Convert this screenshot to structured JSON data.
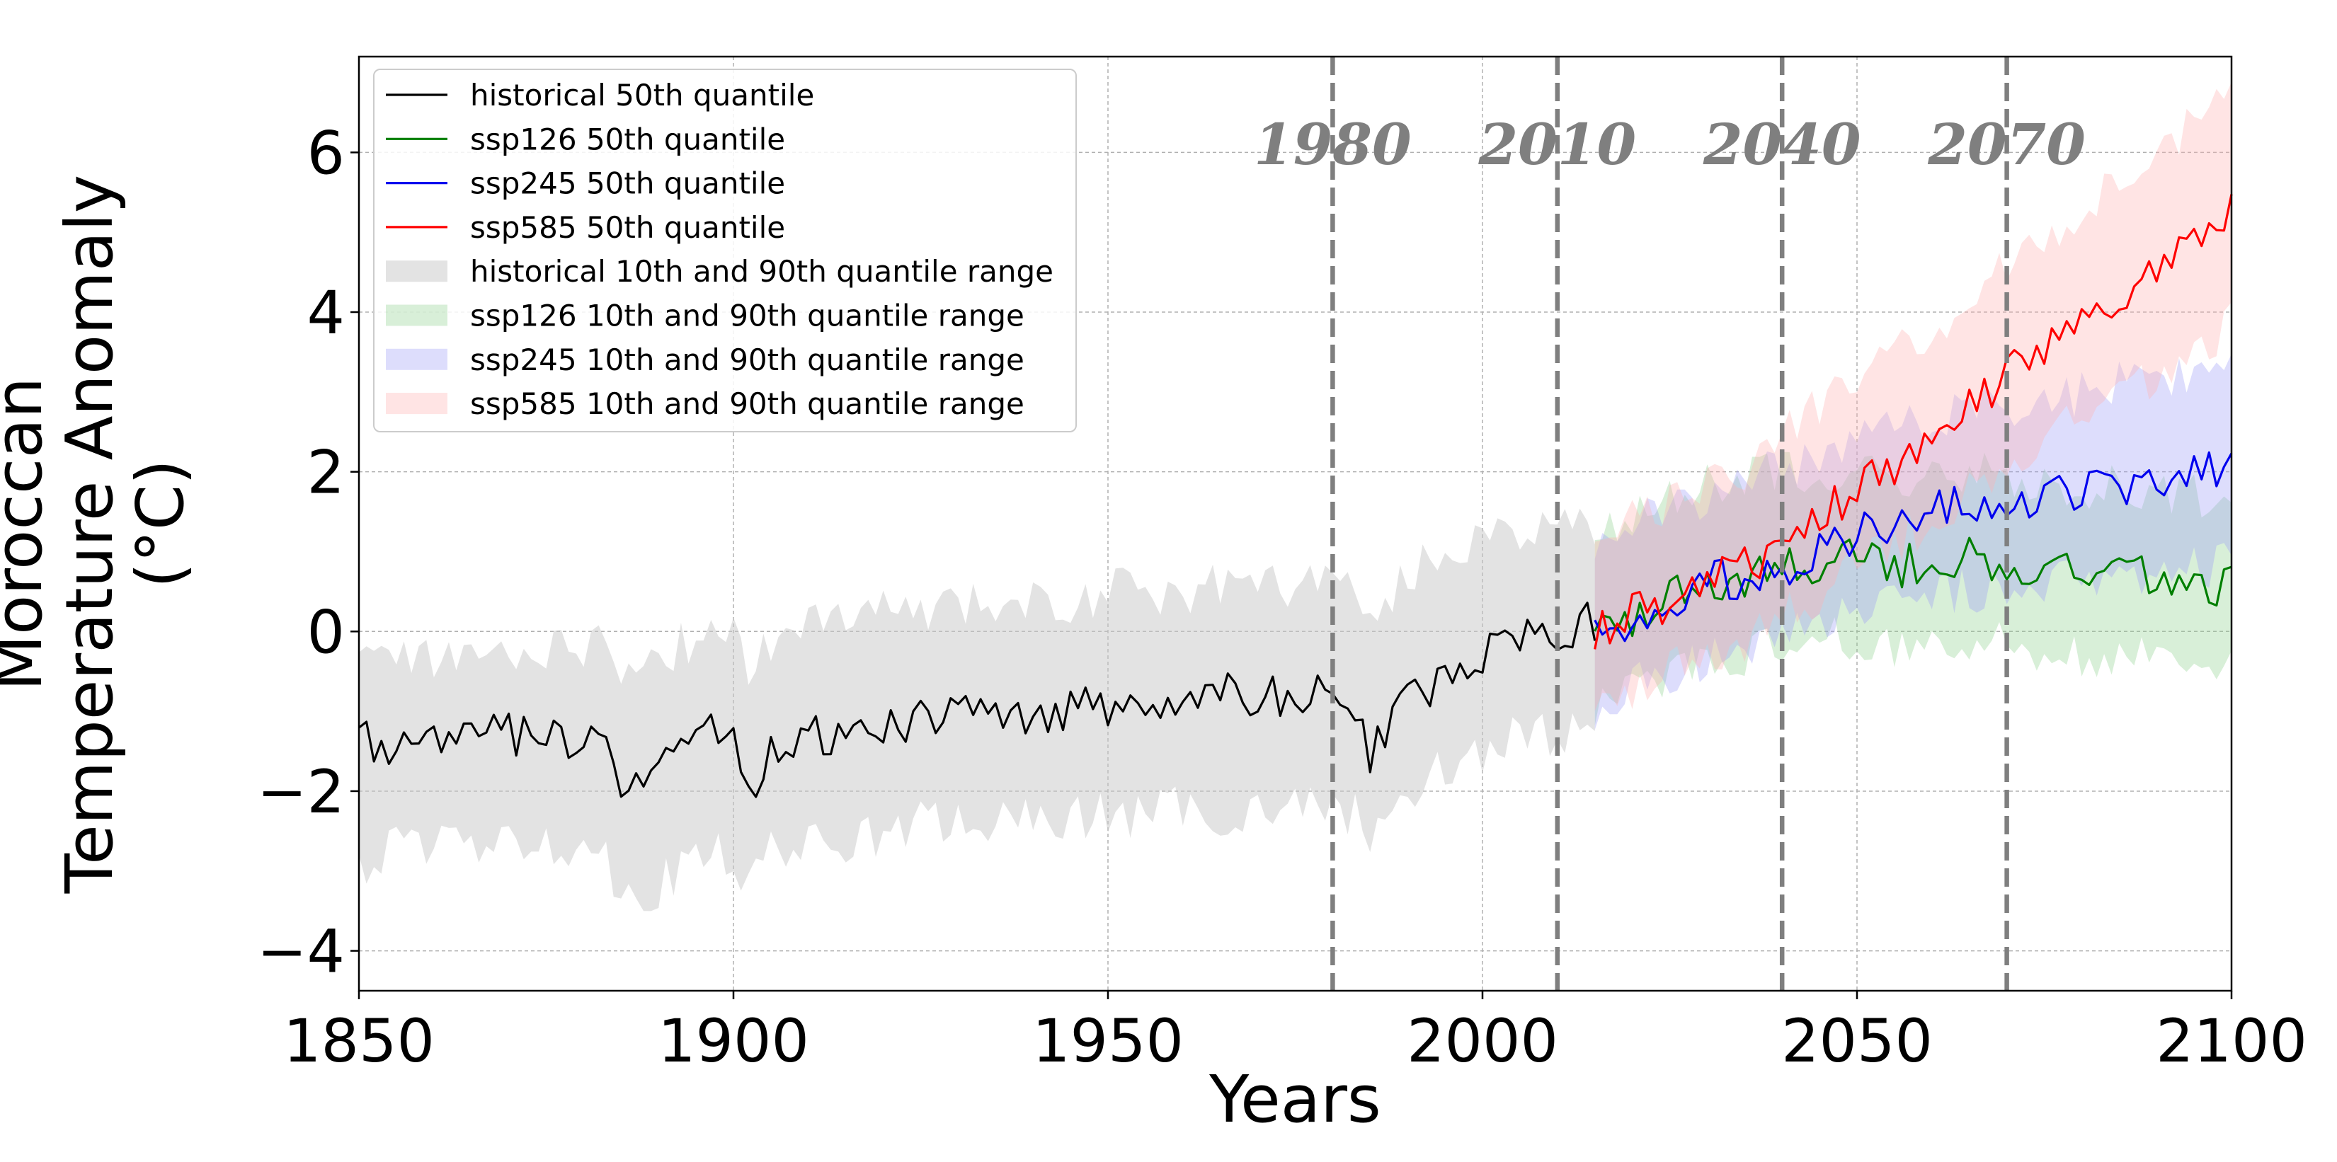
{
  "chart_data": {
    "type": "line",
    "title": "",
    "xlabel": "Years",
    "ylabel_lines": [
      "Moroccan",
      "Temperature Anomaly",
      "(°C)"
    ],
    "xlim": [
      1850,
      2100
    ],
    "ylim": [
      -4.5,
      7.2
    ],
    "xticks": [
      1850,
      1900,
      1950,
      2000,
      2050,
      2100
    ],
    "yticks": [
      -4,
      -2,
      0,
      2,
      4,
      6
    ],
    "ytick_labels": [
      "−4",
      "−2",
      "0",
      "2",
      "4",
      "6"
    ],
    "grid": true,
    "legend_position": "top-left",
    "reference_lines": [
      {
        "x": 1980,
        "label": "1980"
      },
      {
        "x": 2010,
        "label": "2010"
      },
      {
        "x": 2040,
        "label": "2040"
      },
      {
        "x": 2070,
        "label": "2070"
      }
    ],
    "series": [
      {
        "name": "historical",
        "color": "#000000",
        "band_color": "#c8c8c8",
        "median_label": "historical 50th quantile",
        "band_label": "historical 10th and 90th quantile range",
        "x": [
          1850,
          1855,
          1860,
          1865,
          1870,
          1875,
          1880,
          1883,
          1885,
          1890,
          1895,
          1900,
          1902,
          1905,
          1910,
          1915,
          1920,
          1925,
          1930,
          1935,
          1940,
          1945,
          1950,
          1955,
          1960,
          1965,
          1970,
          1975,
          1980,
          1983,
          1985,
          1990,
          1995,
          2000,
          2005,
          2010,
          2015
        ],
        "median": [
          -1.3,
          -1.5,
          -1.4,
          -1.3,
          -1.3,
          -1.35,
          -1.4,
          -1.2,
          -2.1,
          -1.6,
          -1.3,
          -1.3,
          -2.1,
          -1.5,
          -1.3,
          -1.4,
          -1.2,
          -1.1,
          -1.0,
          -1.1,
          -1.0,
          -1.0,
          -0.9,
          -0.9,
          -0.9,
          -0.8,
          -0.8,
          -0.9,
          -0.7,
          -1.0,
          -1.6,
          -0.8,
          -0.6,
          -0.3,
          -0.1,
          0.0,
          0.1
        ],
        "q10": [
          -3.0,
          -2.7,
          -2.6,
          -2.7,
          -2.7,
          -2.6,
          -2.7,
          -2.8,
          -3.3,
          -3.2,
          -2.8,
          -2.8,
          -3.3,
          -2.7,
          -2.7,
          -2.6,
          -2.6,
          -2.4,
          -2.4,
          -2.4,
          -2.4,
          -2.3,
          -2.3,
          -2.3,
          -2.2,
          -2.3,
          -2.2,
          -2.2,
          -2.2,
          -2.3,
          -2.6,
          -2.0,
          -1.7,
          -1.5,
          -1.3,
          -1.3,
          -1.1
        ],
        "q90": [
          -0.1,
          -0.3,
          -0.4,
          -0.2,
          -0.3,
          -0.2,
          -0.2,
          -0.1,
          -0.4,
          -0.3,
          -0.1,
          0.1,
          -0.6,
          -0.1,
          0.1,
          0.2,
          0.3,
          0.3,
          0.4,
          0.3,
          0.4,
          0.3,
          0.5,
          0.5,
          0.5,
          0.6,
          0.6,
          0.6,
          0.7,
          0.5,
          0.1,
          0.7,
          1.0,
          1.2,
          1.3,
          1.4,
          1.3
        ]
      },
      {
        "name": "ssp126",
        "color": "#007f00",
        "band_color": "#8fd18f",
        "median_label": "ssp126 50th quantile",
        "band_label": "ssp126 10th and 90th quantile range",
        "x": [
          2015,
          2020,
          2025,
          2030,
          2035,
          2040,
          2045,
          2050,
          2055,
          2060,
          2065,
          2070,
          2075,
          2080,
          2085,
          2090,
          2095,
          2100
        ],
        "median": [
          0.0,
          0.2,
          0.4,
          0.6,
          0.7,
          0.8,
          0.9,
          0.9,
          0.8,
          0.9,
          0.9,
          0.8,
          0.8,
          0.7,
          0.7,
          0.7,
          0.6,
          0.6
        ],
        "q10": [
          -1.0,
          -0.7,
          -0.5,
          -0.4,
          -0.3,
          -0.2,
          -0.1,
          -0.1,
          -0.2,
          -0.1,
          -0.1,
          -0.2,
          -0.2,
          -0.3,
          -0.3,
          -0.3,
          -0.4,
          -0.4
        ],
        "q90": [
          1.2,
          1.4,
          1.6,
          1.8,
          1.9,
          2.0,
          2.0,
          2.0,
          1.9,
          2.0,
          2.0,
          1.9,
          1.9,
          1.8,
          1.8,
          1.8,
          1.7,
          1.7
        ]
      },
      {
        "name": "ssp245",
        "color": "#0000ee",
        "band_color": "#9f9ff5",
        "median_label": "ssp245 50th quantile",
        "band_label": "ssp245 10th and 90th quantile range",
        "x": [
          2015,
          2020,
          2025,
          2030,
          2035,
          2040,
          2045,
          2050,
          2055,
          2060,
          2065,
          2070,
          2075,
          2080,
          2085,
          2090,
          2095,
          2100
        ],
        "median": [
          0.0,
          0.2,
          0.4,
          0.6,
          0.7,
          0.8,
          1.0,
          1.2,
          1.3,
          1.5,
          1.6,
          1.6,
          1.7,
          1.7,
          1.8,
          1.9,
          2.0,
          2.0
        ],
        "q10": [
          -1.0,
          -0.7,
          -0.5,
          -0.3,
          -0.2,
          -0.1,
          0.1,
          0.2,
          0.3,
          0.4,
          0.5,
          0.5,
          0.6,
          0.6,
          0.7,
          0.8,
          0.8,
          0.9
        ],
        "q90": [
          1.2,
          1.3,
          1.6,
          1.7,
          1.9,
          2.0,
          2.2,
          2.4,
          2.5,
          2.7,
          2.8,
          2.8,
          2.9,
          3.0,
          3.1,
          3.1,
          3.2,
          3.4
        ]
      },
      {
        "name": "ssp585",
        "color": "#ff0000",
        "band_color": "#ffb3b3",
        "median_label": "ssp585 50th quantile",
        "band_label": "ssp585 10th and 90th quantile range",
        "x": [
          2015,
          2020,
          2025,
          2030,
          2035,
          2040,
          2045,
          2050,
          2055,
          2060,
          2065,
          2070,
          2075,
          2080,
          2085,
          2090,
          2095,
          2100
        ],
        "median": [
          0.0,
          0.2,
          0.4,
          0.6,
          0.8,
          1.1,
          1.5,
          1.8,
          2.1,
          2.4,
          2.8,
          3.2,
          3.5,
          3.8,
          4.1,
          4.5,
          4.9,
          5.3
        ],
        "q10": [
          -1.0,
          -0.7,
          -0.5,
          -0.3,
          -0.1,
          0.2,
          0.5,
          0.8,
          1.1,
          1.4,
          1.7,
          2.1,
          2.4,
          2.7,
          2.9,
          3.2,
          3.5,
          3.9
        ],
        "q90": [
          1.2,
          1.4,
          1.6,
          1.8,
          2.0,
          2.4,
          2.8,
          3.2,
          3.5,
          3.8,
          4.2,
          4.6,
          4.9,
          5.3,
          5.6,
          6.0,
          6.4,
          6.6
        ]
      }
    ]
  }
}
